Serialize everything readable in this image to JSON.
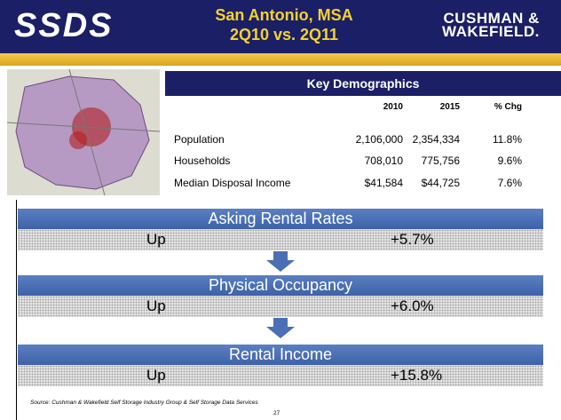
{
  "header": {
    "logo": "SSDS",
    "title": "San Antonio, MSA",
    "subtitle": "2Q10 vs. 2Q11",
    "brand_line1": "CUSHMAN &",
    "brand_line2": "WAKEFIELD."
  },
  "demographics": {
    "title": "Key Demographics",
    "columns": [
      "2010",
      "2015",
      "% Chg"
    ],
    "rows": [
      [
        "Population",
        "2,106,000",
        "2,354,334",
        "11.8%"
      ],
      [
        "Households",
        "708,010",
        "775,756",
        "9.6%"
      ],
      [
        "Median Disposal Income",
        "$41,584",
        "$44,725",
        "7.6%"
      ]
    ]
  },
  "metrics": [
    {
      "label": "Asking Rental Rates",
      "direction": "Up",
      "change": "+5.7%"
    },
    {
      "label": "Physical Occupancy",
      "direction": "Up",
      "change": "+6.0%"
    },
    {
      "label": "Rental Income",
      "direction": "Up",
      "change": "+15.8%"
    }
  ],
  "source": "Source: Cushman & Wakefield Self Storage Industry Group & Self Storage Data Services",
  "page_number": "27"
}
